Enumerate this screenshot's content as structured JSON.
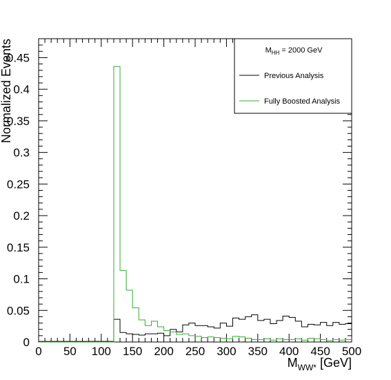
{
  "chart_data": {
    "type": "line",
    "xlabel": "M",
    "xlabel_sub": "WW*",
    "xlabel_unit": " [GeV]",
    "ylabel": "Normalized Events",
    "xlim": [
      0,
      500
    ],
    "ylim": [
      0,
      0.48
    ],
    "xticks": [
      "0",
      "50",
      "100",
      "150",
      "200",
      "250",
      "300",
      "350",
      "400",
      "450",
      "500"
    ],
    "yticks": [
      "0",
      "0.05",
      "0.1",
      "0.15",
      "0.2",
      "0.25",
      "0.3",
      "0.35",
      "0.4",
      "0.45"
    ],
    "bin_edges": [
      0,
      10,
      20,
      30,
      40,
      50,
      60,
      70,
      80,
      90,
      100,
      110,
      120,
      130,
      140,
      150,
      160,
      170,
      180,
      190,
      200,
      210,
      220,
      230,
      240,
      250,
      260,
      270,
      280,
      290,
      300,
      310,
      320,
      330,
      340,
      350,
      360,
      370,
      380,
      390,
      400,
      410,
      420,
      430,
      440,
      450,
      460,
      470,
      480,
      490,
      500
    ],
    "legend": {
      "header": "M",
      "header_sub": "HH",
      "header_rest": " = 2000 GeV",
      "position": "top-right"
    },
    "series": [
      {
        "name": "Previous Analysis",
        "color": "#000000",
        "values": [
          0.001,
          0.001,
          0.001,
          0.001,
          0.001,
          0.001,
          0.001,
          0.001,
          0.001,
          0.001,
          0.001,
          0.001,
          0.036,
          0.015,
          0.013,
          0.012,
          0.011,
          0.013,
          0.013,
          0.014,
          0.01,
          0.02,
          0.016,
          0.027,
          0.03,
          0.026,
          0.026,
          0.024,
          0.022,
          0.03,
          0.025,
          0.038,
          0.036,
          0.04,
          0.043,
          0.034,
          0.036,
          0.029,
          0.034,
          0.041,
          0.039,
          0.033,
          0.024,
          0.028,
          0.027,
          0.031,
          0.026,
          0.031,
          0.028,
          0.029
        ]
      },
      {
        "name": "Fully Boosted Analysis",
        "color": "#33aa33",
        "values": [
          0.0,
          0.0,
          0.0,
          0.0,
          0.0,
          0.0,
          0.0,
          0.0,
          0.0,
          0.0,
          0.0,
          0.0,
          0.436,
          0.113,
          0.082,
          0.054,
          0.035,
          0.026,
          0.033,
          0.024,
          0.018,
          0.016,
          0.012,
          0.013,
          0.01,
          0.009,
          0.007,
          0.008,
          0.007,
          0.006,
          0.005,
          0.009,
          0.008,
          0.006,
          0.004,
          0.004,
          0.005,
          0.003,
          0.005,
          0.004,
          0.004,
          0.005,
          0.003,
          0.006,
          0.005,
          0.004,
          0.002,
          0.004,
          0.003,
          0.004
        ]
      }
    ]
  }
}
